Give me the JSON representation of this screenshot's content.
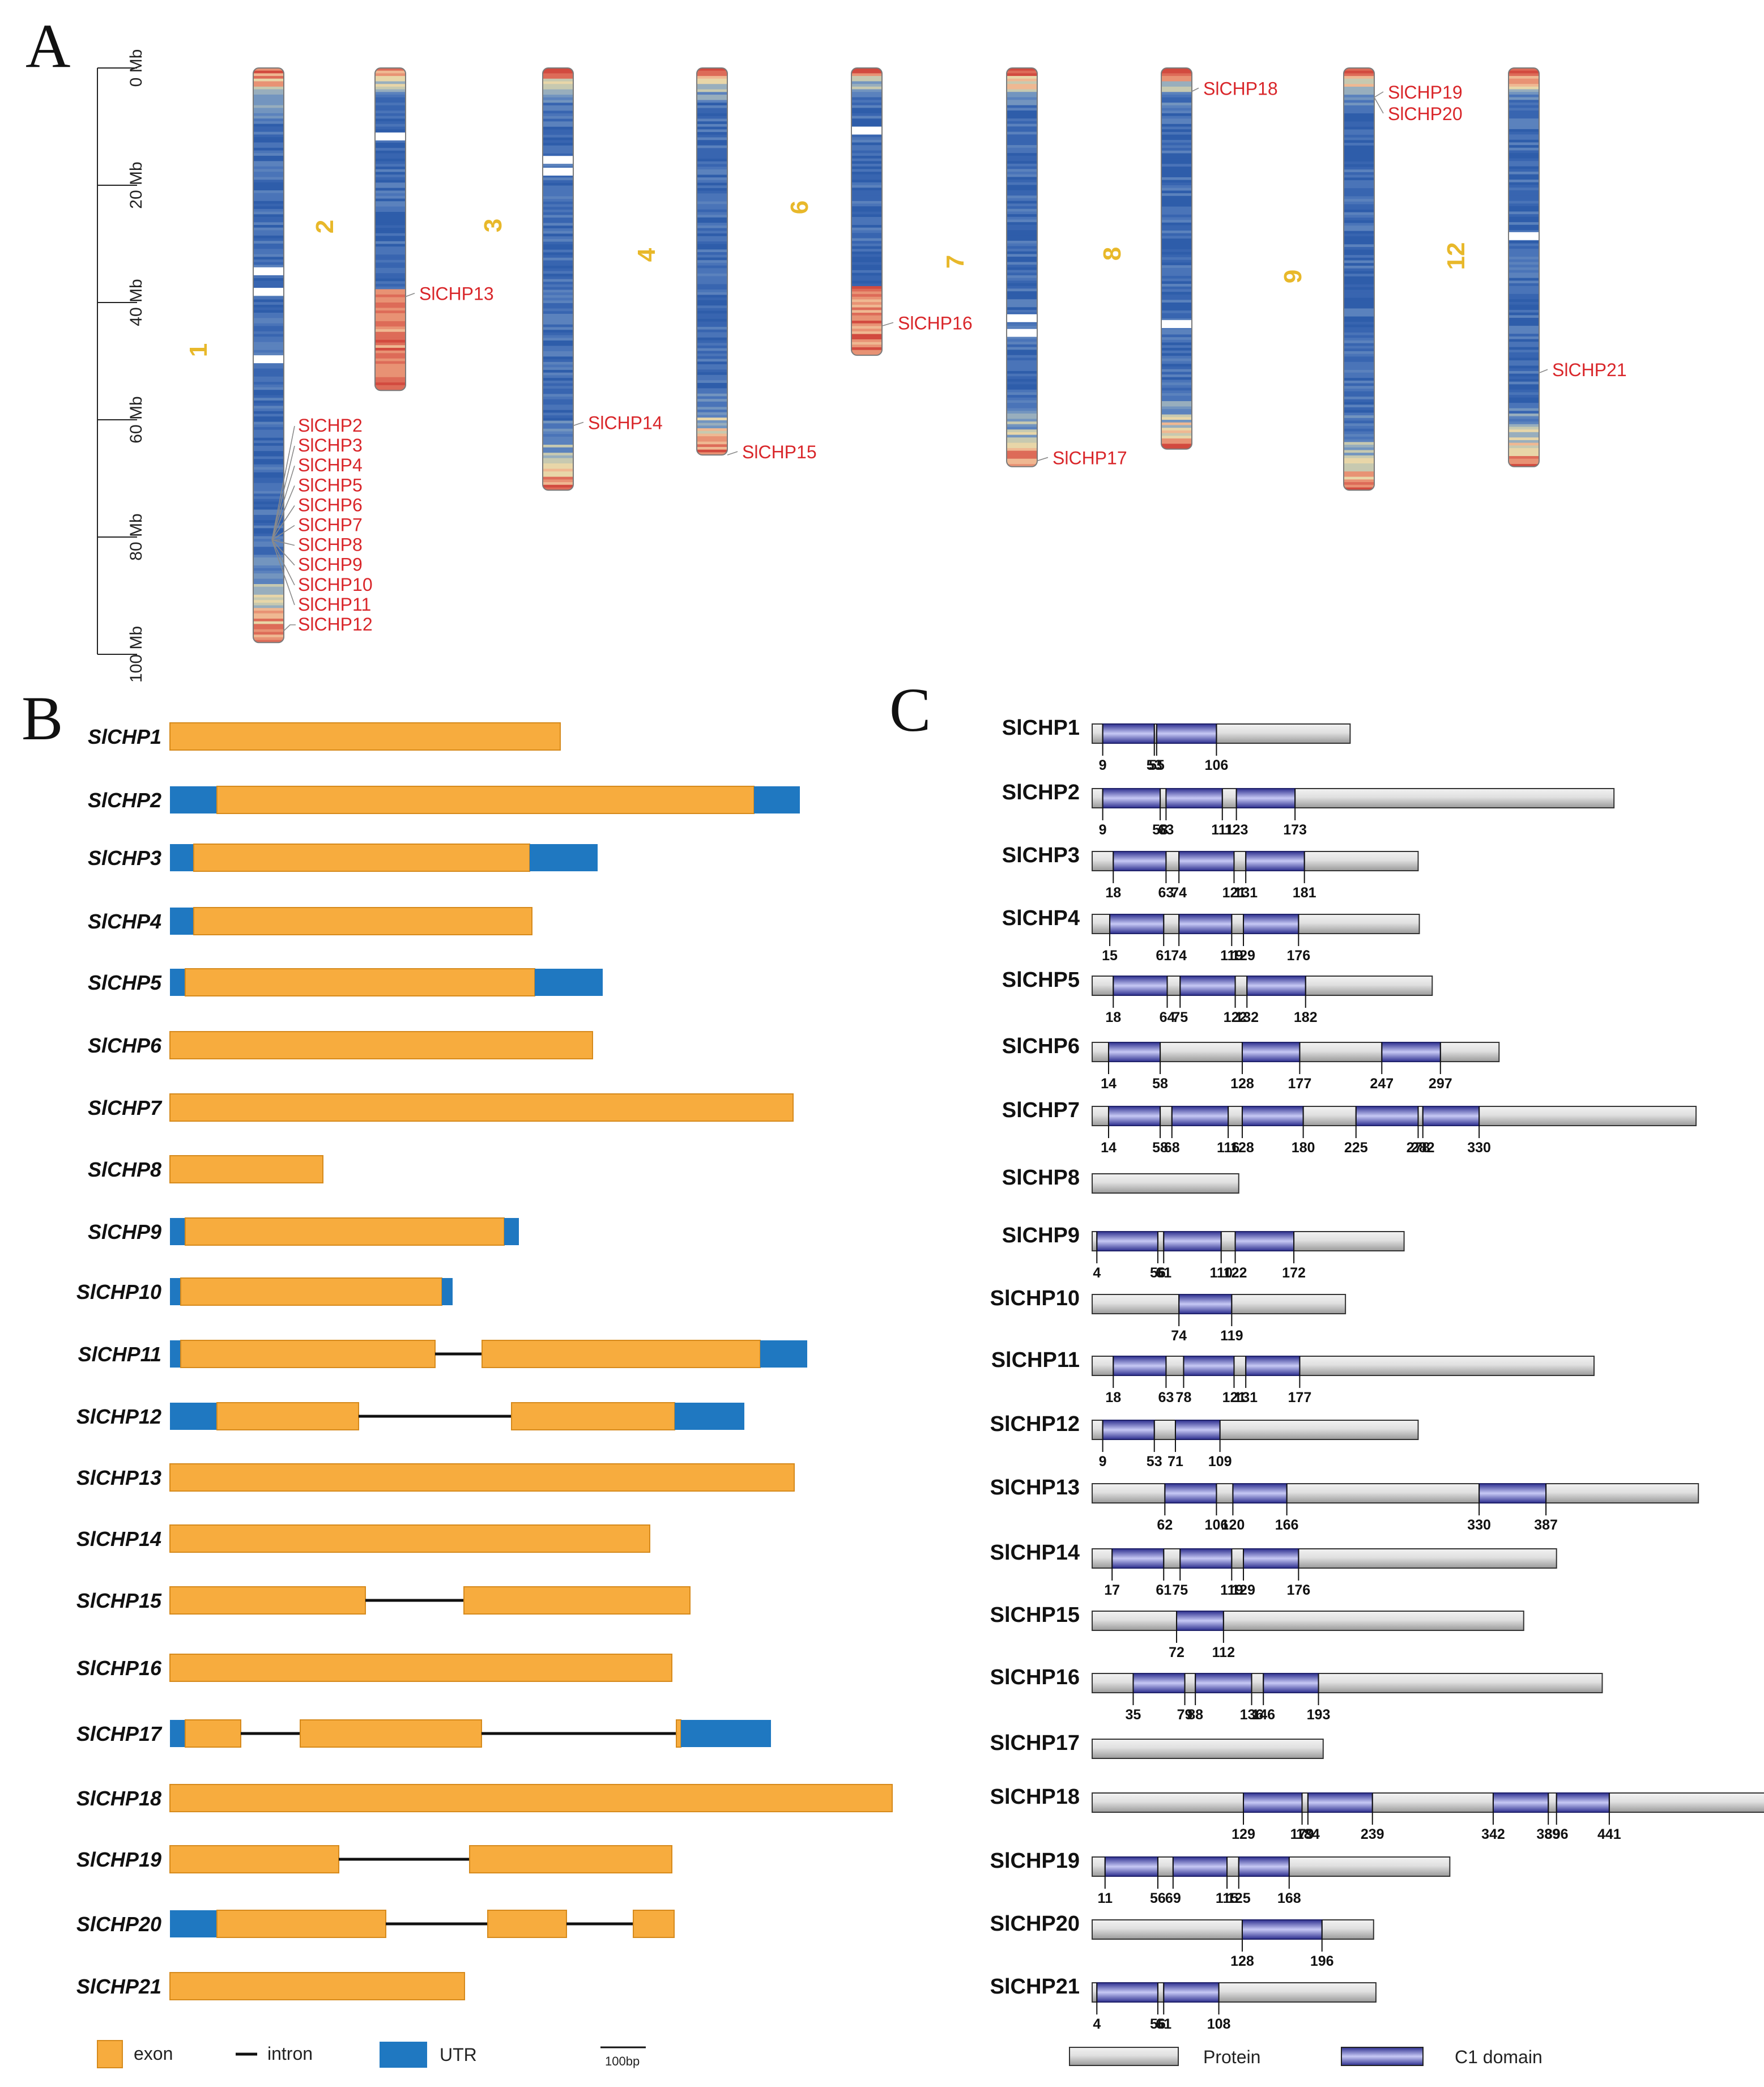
{
  "panelA": {
    "letter": "A",
    "scale_labels": [
      "0 Mb",
      "20 Mb",
      "40 Mb",
      "60 Mb",
      "80 Mb",
      "100 Mb"
    ],
    "chromosomes": [
      {
        "id": "1",
        "length_mb": 98,
        "gaps_mb": [
          34,
          37.5,
          49
        ]
      },
      {
        "id": "2",
        "length_mb": 55,
        "gaps_mb": [
          11
        ]
      },
      {
        "id": "3",
        "length_mb": 72,
        "gaps_mb": [
          15,
          17
        ]
      },
      {
        "id": "4",
        "length_mb": 66,
        "gaps_mb": []
      },
      {
        "id": "6",
        "length_mb": 49,
        "gaps_mb": [
          10
        ]
      },
      {
        "id": "7",
        "length_mb": 68,
        "gaps_mb": [
          42,
          44.5
        ]
      },
      {
        "id": "8",
        "length_mb": 65,
        "gaps_mb": [
          43
        ]
      },
      {
        "id": "9",
        "length_mb": 72,
        "gaps_mb": []
      },
      {
        "id": "12",
        "length_mb": 68,
        "gaps_mb": [
          28
        ]
      }
    ],
    "gene_labels": [
      {
        "chr": "1",
        "genes": [
          "SlCHP2",
          "SlCHP3",
          "SlCHP4",
          "SlCHP5",
          "SlCHP6",
          "SlCHP7",
          "SlCHP8",
          "SlCHP9",
          "SlCHP10",
          "SlCHP11",
          "SlCHP12"
        ],
        "position_mb": [
          80,
          80,
          80,
          80,
          80,
          80,
          80,
          80,
          80,
          80,
          96
        ]
      },
      {
        "chr": "2",
        "genes": [
          "SlCHP13"
        ],
        "position_mb": [
          39
        ]
      },
      {
        "chr": "3",
        "genes": [
          "SlCHP14"
        ],
        "position_mb": [
          61
        ]
      },
      {
        "chr": "4",
        "genes": [
          "SlCHP15"
        ],
        "position_mb": [
          66
        ]
      },
      {
        "chr": "6",
        "genes": [
          "SlCHP16"
        ],
        "position_mb": [
          44
        ]
      },
      {
        "chr": "7",
        "genes": [
          "SlCHP17"
        ],
        "position_mb": [
          67
        ]
      },
      {
        "chr": "8",
        "genes": [
          "SlCHP18"
        ],
        "position_mb": [
          4
        ]
      },
      {
        "chr": "9",
        "genes": [
          "SlCHP19",
          "SlCHP20"
        ],
        "position_mb": [
          5,
          5
        ]
      },
      {
        "chr": "12",
        "genes": [
          "SlCHP21"
        ],
        "position_mb": [
          52
        ]
      }
    ]
  },
  "panelB": {
    "letter": "B",
    "genes": [
      {
        "name": "SlCHP1",
        "segments": [
          {
            "t": "exon",
            "s": 0,
            "e": 689
          }
        ]
      },
      {
        "name": "SlCHP2",
        "segments": [
          {
            "t": "utr",
            "s": 0,
            "e": 83
          },
          {
            "t": "exon",
            "s": 83,
            "e": 1031
          },
          {
            "t": "utr",
            "s": 1031,
            "e": 1112
          }
        ]
      },
      {
        "name": "SlCHP3",
        "segments": [
          {
            "t": "utr",
            "s": 0,
            "e": 42
          },
          {
            "t": "exon",
            "s": 42,
            "e": 635
          },
          {
            "t": "utr",
            "s": 635,
            "e": 755
          }
        ]
      },
      {
        "name": "SlCHP4",
        "segments": [
          {
            "t": "utr",
            "s": 0,
            "e": 42
          },
          {
            "t": "exon",
            "s": 42,
            "e": 639
          }
        ]
      },
      {
        "name": "SlCHP5",
        "segments": [
          {
            "t": "utr",
            "s": 0,
            "e": 27
          },
          {
            "t": "exon",
            "s": 27,
            "e": 644
          },
          {
            "t": "utr",
            "s": 644,
            "e": 764
          }
        ]
      },
      {
        "name": "SlCHP6",
        "segments": [
          {
            "t": "exon",
            "s": 0,
            "e": 746
          }
        ]
      },
      {
        "name": "SlCHP7",
        "segments": [
          {
            "t": "exon",
            "s": 0,
            "e": 1100
          }
        ]
      },
      {
        "name": "SlCHP8",
        "segments": [
          {
            "t": "exon",
            "s": 0,
            "e": 270
          }
        ]
      },
      {
        "name": "SlCHP9",
        "segments": [
          {
            "t": "utr",
            "s": 0,
            "e": 27
          },
          {
            "t": "exon",
            "s": 27,
            "e": 590
          },
          {
            "t": "utr",
            "s": 590,
            "e": 616
          }
        ]
      },
      {
        "name": "SlCHP10",
        "segments": [
          {
            "t": "utr",
            "s": 0,
            "e": 19
          },
          {
            "t": "exon",
            "s": 19,
            "e": 480
          },
          {
            "t": "utr",
            "s": 480,
            "e": 499
          }
        ]
      },
      {
        "name": "SlCHP11",
        "segments": [
          {
            "t": "utr",
            "s": 0,
            "e": 19
          },
          {
            "t": "exon",
            "s": 19,
            "e": 468
          },
          {
            "t": "intron",
            "s": 468,
            "e": 551
          },
          {
            "t": "exon",
            "s": 551,
            "e": 1042
          },
          {
            "t": "utr",
            "s": 1042,
            "e": 1125
          }
        ]
      },
      {
        "name": "SlCHP12",
        "segments": [
          {
            "t": "utr",
            "s": 0,
            "e": 83
          },
          {
            "t": "exon",
            "s": 83,
            "e": 333
          },
          {
            "t": "intron",
            "s": 333,
            "e": 603
          },
          {
            "t": "exon",
            "s": 603,
            "e": 891
          },
          {
            "t": "utr",
            "s": 891,
            "e": 1014
          }
        ]
      },
      {
        "name": "SlCHP13",
        "segments": [
          {
            "t": "exon",
            "s": 0,
            "e": 1102
          }
        ]
      },
      {
        "name": "SlCHP14",
        "segments": [
          {
            "t": "exon",
            "s": 0,
            "e": 847
          }
        ]
      },
      {
        "name": "SlCHP15",
        "segments": [
          {
            "t": "exon",
            "s": 0,
            "e": 345
          },
          {
            "t": "intron",
            "s": 345,
            "e": 519
          },
          {
            "t": "exon",
            "s": 519,
            "e": 918
          }
        ]
      },
      {
        "name": "SlCHP16",
        "segments": [
          {
            "t": "exon",
            "s": 0,
            "e": 886
          }
        ]
      },
      {
        "name": "SlCHP17",
        "segments": [
          {
            "t": "utr",
            "s": 0,
            "e": 27
          },
          {
            "t": "exon",
            "s": 27,
            "e": 125
          },
          {
            "t": "intron",
            "s": 125,
            "e": 230
          },
          {
            "t": "exon",
            "s": 230,
            "e": 550
          },
          {
            "t": "intron",
            "s": 550,
            "e": 894
          },
          {
            "t": "exon",
            "s": 894,
            "e": 902
          },
          {
            "t": "utr",
            "s": 902,
            "e": 1061
          }
        ]
      },
      {
        "name": "SlCHP18",
        "segments": [
          {
            "t": "exon",
            "s": 0,
            "e": 1275
          }
        ]
      },
      {
        "name": "SlCHP19",
        "segments": [
          {
            "t": "exon",
            "s": 0,
            "e": 298
          },
          {
            "t": "intron",
            "s": 298,
            "e": 529
          },
          {
            "t": "exon",
            "s": 529,
            "e": 886
          }
        ]
      },
      {
        "name": "SlCHP20",
        "segments": [
          {
            "t": "utr",
            "s": 0,
            "e": 83
          },
          {
            "t": "exon",
            "s": 83,
            "e": 381
          },
          {
            "t": "intron",
            "s": 381,
            "e": 561
          },
          {
            "t": "exon",
            "s": 561,
            "e": 700
          },
          {
            "t": "intron",
            "s": 700,
            "e": 818
          },
          {
            "t": "exon",
            "s": 818,
            "e": 890
          }
        ]
      },
      {
        "name": "SlCHP21",
        "segments": [
          {
            "t": "exon",
            "s": 0,
            "e": 520
          }
        ]
      }
    ],
    "legend": {
      "exon": "exon",
      "intron": "intron",
      "utr": "UTR",
      "scale": "100bp",
      "scale_bp": 100
    }
  },
  "panelC": {
    "letter": "C",
    "proteins": [
      {
        "name": "SlCHP1",
        "length": 220,
        "domains": [
          [
            9,
            53
          ],
          [
            55,
            106
          ]
        ],
        "ticks": [
          "9",
          "53",
          "55",
          "106"
        ]
      },
      {
        "name": "SlCHP2",
        "length": 445,
        "domains": [
          [
            9,
            58
          ],
          [
            63,
            111
          ],
          [
            123,
            173
          ]
        ],
        "ticks": [
          "9",
          "58",
          "63",
          "111",
          "123",
          "173"
        ]
      },
      {
        "name": "SlCHP3",
        "length": 278,
        "domains": [
          [
            18,
            63
          ],
          [
            74,
            121
          ],
          [
            131,
            181
          ]
        ],
        "ticks": [
          "18",
          "63",
          "74",
          "121",
          "131",
          "181"
        ]
      },
      {
        "name": "SlCHP4",
        "length": 279,
        "domains": [
          [
            15,
            61
          ],
          [
            74,
            119
          ],
          [
            129,
            176
          ]
        ],
        "ticks": [
          "15",
          "61",
          "74",
          "119",
          "129",
          "176"
        ]
      },
      {
        "name": "SlCHP5",
        "length": 290,
        "domains": [
          [
            18,
            64
          ],
          [
            75,
            122
          ],
          [
            132,
            182
          ]
        ],
        "ticks": [
          "18",
          "64",
          "75",
          "122",
          "132",
          "182"
        ]
      },
      {
        "name": "SlCHP6",
        "length": 347,
        "domains": [
          [
            14,
            58
          ],
          [
            128,
            177
          ],
          [
            247,
            297
          ]
        ],
        "ticks": [
          "14",
          "58",
          "128",
          "177",
          "247",
          "297"
        ]
      },
      {
        "name": "SlCHP7",
        "length": 515,
        "domains": [
          [
            14,
            58
          ],
          [
            68,
            116
          ],
          [
            128,
            180
          ],
          [
            225,
            278
          ],
          [
            282,
            330
          ]
        ],
        "ticks": [
          "14",
          "58",
          "68",
          "116",
          "128",
          "180",
          "225",
          "278",
          "282",
          "330"
        ]
      },
      {
        "name": "SlCHP8",
        "length": 125,
        "domains": [],
        "ticks": []
      },
      {
        "name": "SlCHP9",
        "length": 266,
        "domains": [
          [
            4,
            56
          ],
          [
            61,
            110
          ],
          [
            122,
            172
          ]
        ],
        "ticks": [
          "4",
          "56",
          "61",
          "110",
          "122",
          "172"
        ]
      },
      {
        "name": "SlCHP10",
        "length": 216,
        "domains": [
          [
            74,
            119
          ]
        ],
        "ticks": [
          "74",
          "119"
        ]
      },
      {
        "name": "SlCHP11",
        "length": 428,
        "domains": [
          [
            18,
            63
          ],
          [
            78,
            121
          ],
          [
            131,
            177
          ]
        ],
        "ticks": [
          "18",
          "63",
          "78",
          "121",
          "131",
          "177"
        ]
      },
      {
        "name": "SlCHP12",
        "length": 278,
        "domains": [
          [
            9,
            53
          ],
          [
            71,
            109
          ]
        ],
        "ticks": [
          "9",
          "53",
          "71",
          "109"
        ]
      },
      {
        "name": "SlCHP13",
        "length": 517,
        "domains": [
          [
            62,
            106
          ],
          [
            120,
            166
          ],
          [
            330,
            387
          ]
        ],
        "ticks": [
          "62",
          "106",
          "120",
          "166",
          "330",
          "387"
        ]
      },
      {
        "name": "SlCHP14",
        "length": 396,
        "domains": [
          [
            17,
            61
          ],
          [
            75,
            119
          ],
          [
            129,
            176
          ]
        ],
        "ticks": [
          "17",
          "61",
          "75",
          "119",
          "129",
          "176"
        ]
      },
      {
        "name": "SlCHP15",
        "length": 368,
        "domains": [
          [
            72,
            112
          ]
        ],
        "ticks": [
          "72",
          "112"
        ]
      },
      {
        "name": "SlCHP16",
        "length": 435,
        "domains": [
          [
            35,
            79
          ],
          [
            88,
            136
          ],
          [
            146,
            193
          ]
        ],
        "ticks": [
          "35",
          "79",
          "88",
          "136",
          "146",
          "193"
        ]
      },
      {
        "name": "SlCHP17",
        "length": 197,
        "domains": [],
        "ticks": []
      },
      {
        "name": "SlCHP18",
        "length": 598,
        "domains": [
          [
            129,
            179
          ],
          [
            184,
            239
          ],
          [
            342,
            389
          ],
          [
            396,
            441
          ]
        ],
        "ticks": [
          "129",
          "179",
          "184",
          "239",
          "342",
          "389",
          "396",
          "441"
        ]
      },
      {
        "name": "SlCHP19",
        "length": 305,
        "domains": [
          [
            11,
            56
          ],
          [
            69,
            115
          ],
          [
            125,
            168
          ]
        ],
        "ticks": [
          "11",
          "56",
          "69",
          "115",
          "125",
          "168"
        ]
      },
      {
        "name": "SlCHP20",
        "length": 240,
        "domains": [
          [
            128,
            196
          ]
        ],
        "ticks": [
          "128",
          "196"
        ]
      },
      {
        "name": "SlCHP21",
        "length": 242,
        "domains": [
          [
            4,
            56
          ],
          [
            61,
            108
          ]
        ],
        "ticks": [
          "4",
          "56",
          "61",
          "108"
        ]
      }
    ],
    "legend": {
      "protein": "Protein",
      "domain": "C1 domain"
    }
  },
  "colors": {
    "exon": "#f7ac3e",
    "exon_edge": "#d68a1c",
    "utr": "#1f78c1",
    "intron": "#111111",
    "gene_red": "#d9262a",
    "chr_num": "#e8b82a",
    "domain": "#4b4fb8",
    "protein": "#cfcfcf"
  }
}
